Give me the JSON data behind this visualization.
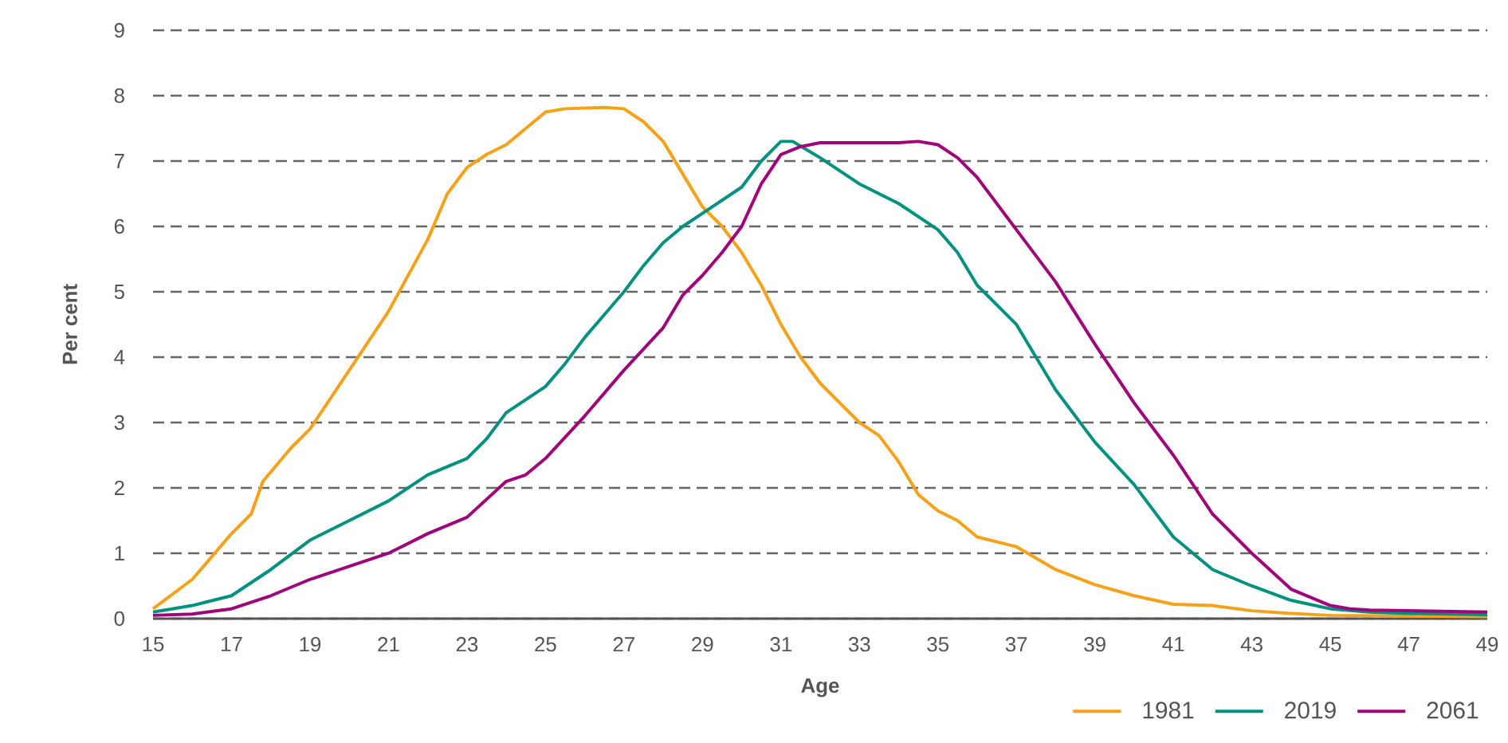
{
  "chart_data": {
    "type": "line",
    "xlabel": "Age",
    "ylabel": "Per cent",
    "xlim": [
      15,
      49
    ],
    "xticks": [
      15,
      17,
      19,
      21,
      23,
      25,
      27,
      29,
      31,
      33,
      35,
      37,
      39,
      41,
      43,
      45,
      47,
      49
    ],
    "ylim": [
      0,
      9
    ],
    "yticks": [
      0,
      1,
      2,
      3,
      4,
      5,
      6,
      7,
      8,
      9
    ],
    "grid": "y",
    "legend": "bottom right",
    "series": [
      {
        "name": "1981",
        "color": "#f7a11a",
        "x": [
          15,
          16,
          17,
          17.5,
          17.8,
          18.5,
          19,
          20,
          21,
          22,
          22.5,
          23,
          23.5,
          24,
          24.5,
          25,
          25.5,
          26.5,
          27,
          27.5,
          28,
          28.5,
          29,
          29.5,
          30,
          30.5,
          31,
          31.5,
          32,
          33,
          33.5,
          34,
          34.5,
          35,
          35.5,
          36,
          37,
          38,
          39,
          40,
          41,
          42,
          43,
          44,
          45,
          47,
          49
        ],
        "values": [
          0.15,
          0.6,
          1.3,
          1.6,
          2.1,
          2.6,
          2.9,
          3.8,
          4.7,
          5.8,
          6.5,
          6.9,
          7.1,
          7.25,
          7.5,
          7.75,
          7.8,
          7.82,
          7.8,
          7.6,
          7.3,
          6.8,
          6.3,
          6.0,
          5.6,
          5.1,
          4.5,
          4.0,
          3.6,
          3.0,
          2.8,
          2.4,
          1.9,
          1.65,
          1.5,
          1.25,
          1.1,
          0.75,
          0.52,
          0.35,
          0.22,
          0.2,
          0.12,
          0.08,
          0.05,
          0.04,
          0.03
        ]
      },
      {
        "name": "2019",
        "color": "#00917f",
        "x": [
          15,
          16,
          17,
          18,
          19,
          20,
          21,
          22,
          23,
          23.5,
          24,
          24.5,
          25,
          25.5,
          26,
          27,
          27.5,
          28,
          28.5,
          29,
          30,
          30.5,
          31,
          31.3,
          32,
          32.5,
          33,
          34,
          35,
          35.5,
          36,
          37,
          38,
          39,
          40,
          41,
          42,
          43,
          44,
          45,
          46,
          47,
          49
        ],
        "values": [
          0.1,
          0.2,
          0.35,
          0.75,
          1.2,
          1.5,
          1.8,
          2.2,
          2.45,
          2.75,
          3.15,
          3.35,
          3.55,
          3.9,
          4.3,
          5.0,
          5.4,
          5.75,
          6.0,
          6.2,
          6.6,
          7.0,
          7.3,
          7.3,
          7.05,
          6.85,
          6.65,
          6.35,
          5.95,
          5.6,
          5.1,
          4.5,
          3.5,
          2.7,
          2.05,
          1.25,
          0.75,
          0.5,
          0.28,
          0.15,
          0.1,
          0.08,
          0.06
        ]
      },
      {
        "name": "2061",
        "color": "#a0047a",
        "x": [
          15,
          16,
          17,
          18,
          19,
          20,
          21,
          22,
          23,
          24,
          24.5,
          25,
          26,
          27,
          28,
          28.5,
          29,
          29.5,
          30,
          30.5,
          31,
          31.5,
          32,
          33,
          34,
          34.5,
          35,
          35.5,
          36,
          37,
          38,
          39,
          40,
          41,
          42,
          43,
          44,
          45,
          45.5,
          46,
          47,
          49
        ],
        "values": [
          0.05,
          0.07,
          0.15,
          0.35,
          0.6,
          0.8,
          1.0,
          1.3,
          1.55,
          2.1,
          2.2,
          2.45,
          3.1,
          3.8,
          4.45,
          4.95,
          5.25,
          5.6,
          6.0,
          6.65,
          7.1,
          7.22,
          7.28,
          7.28,
          7.28,
          7.3,
          7.25,
          7.05,
          6.75,
          5.95,
          5.15,
          4.2,
          3.3,
          2.5,
          1.6,
          1.0,
          0.45,
          0.2,
          0.15,
          0.13,
          0.12,
          0.1
        ]
      }
    ]
  }
}
